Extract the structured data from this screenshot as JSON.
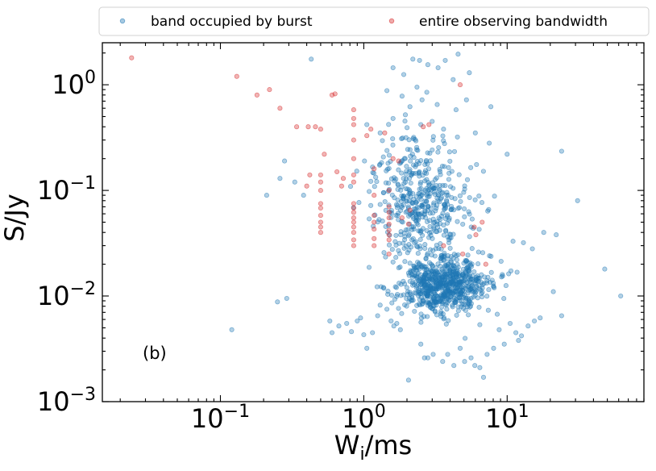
{
  "chart_data": {
    "type": "scatter",
    "xscale": "log",
    "yscale": "log",
    "xlim": [
      0.015,
      90
    ],
    "ylim": [
      0.001,
      2.5
    ],
    "xlabel": {
      "base": "W",
      "sub": "i",
      "unit": "/ms"
    },
    "ylabel": "S/Jy",
    "xticks": [
      {
        "value": 0.1,
        "base": "10",
        "exp": "−1"
      },
      {
        "value": 1,
        "base": "10",
        "exp": "0"
      },
      {
        "value": 10,
        "base": "10",
        "exp": "1"
      }
    ],
    "yticks": [
      {
        "value": 0.001,
        "base": "10",
        "exp": "−3"
      },
      {
        "value": 0.01,
        "base": "10",
        "exp": "−2"
      },
      {
        "value": 0.1,
        "base": "10",
        "exp": "−1"
      },
      {
        "value": 1,
        "base": "10",
        "exp": "0"
      }
    ],
    "legend": {
      "position": "top",
      "columns": 2
    },
    "annotation": "(b)",
    "series": [
      {
        "name": "band occupied by burst",
        "color": "#1f77b4",
        "alpha": 0.35,
        "points": [
          [
            0.12,
            0.0048
          ],
          [
            0.21,
            0.09
          ],
          [
            0.25,
            0.0088
          ],
          [
            0.26,
            0.13
          ],
          [
            0.28,
            0.19
          ],
          [
            0.29,
            0.0095
          ],
          [
            0.33,
            0.12
          ],
          [
            0.38,
            0.09
          ],
          [
            0.43,
            1.75
          ],
          [
            0.58,
            0.0058
          ],
          [
            0.6,
            0.0045
          ],
          [
            0.67,
            0.0052
          ],
          [
            0.76,
            0.0055
          ],
          [
            0.82,
            0.0046
          ],
          [
            0.9,
            0.0058
          ],
          [
            0.95,
            0.0062
          ],
          [
            1.0,
            0.0043
          ],
          [
            1.05,
            0.0032
          ],
          [
            1.15,
            0.0045
          ],
          [
            1.25,
            0.0065
          ],
          [
            1.3,
            0.0082
          ],
          [
            1.45,
            0.0075
          ],
          [
            1.55,
            0.0058
          ],
          [
            1.62,
            0.0052
          ],
          [
            1.7,
            0.0055
          ],
          [
            1.8,
            0.0048
          ],
          [
            2.05,
            0.0016
          ],
          [
            2.5,
            0.0035
          ],
          [
            2.65,
            0.0026
          ],
          [
            2.8,
            0.0026
          ],
          [
            3.05,
            0.0028
          ],
          [
            3.55,
            0.0024
          ],
          [
            3.85,
            0.0028
          ],
          [
            4.25,
            0.0022
          ],
          [
            4.7,
            0.0032
          ],
          [
            5.05,
            0.0024
          ],
          [
            5.6,
            0.0026
          ],
          [
            5.95,
            0.0022
          ],
          [
            6.45,
            0.0021
          ],
          [
            6.85,
            0.0017
          ],
          [
            7.25,
            0.0028
          ],
          [
            8.05,
            0.0032
          ],
          [
            8.8,
            0.0048
          ],
          [
            9.55,
            0.0035
          ],
          [
            10.5,
            0.0055
          ],
          [
            11.5,
            0.0045
          ],
          [
            12.0,
            0.0038
          ],
          [
            12.6,
            0.0042
          ],
          [
            14.0,
            0.0052
          ],
          [
            15.5,
            0.0058
          ],
          [
            17.0,
            0.0062
          ],
          [
            21.0,
            0.011
          ],
          [
            24.0,
            0.0065
          ],
          [
            11.0,
            0.033
          ],
          [
            13.0,
            0.032
          ],
          [
            15.0,
            0.028
          ],
          [
            18.0,
            0.04
          ],
          [
            22.0,
            0.038
          ],
          [
            24.0,
            0.235
          ],
          [
            31.0,
            0.08
          ],
          [
            48.0,
            0.018
          ],
          [
            62.0,
            0.01
          ],
          [
            1.6,
            1.45
          ],
          [
            1.9,
            1.25
          ],
          [
            2.2,
            1.75
          ],
          [
            2.45,
            1.7
          ],
          [
            2.8,
            1.55
          ],
          [
            3.3,
            1.45
          ],
          [
            3.7,
            1.7
          ],
          [
            4.55,
            1.95
          ],
          [
            5.45,
            1.3
          ],
          [
            4.2,
            1.12
          ],
          [
            1.45,
            0.88
          ],
          [
            1.85,
            0.78
          ],
          [
            2.1,
            0.62
          ],
          [
            2.35,
            0.95
          ],
          [
            2.55,
            0.72
          ],
          [
            2.75,
            0.85
          ],
          [
            3.25,
            0.65
          ],
          [
            4.4,
            0.58
          ],
          [
            5.2,
            0.72
          ],
          [
            7.7,
            0.62
          ],
          [
            1.05,
            0.42
          ],
          [
            1.3,
            0.35
          ],
          [
            1.6,
            0.48
          ],
          [
            1.95,
            0.52
          ],
          [
            2.5,
            0.42
          ],
          [
            3.0,
            0.45
          ],
          [
            3.6,
            0.38
          ],
          [
            4.5,
            0.32
          ],
          [
            6.0,
            0.35
          ],
          [
            7.5,
            0.28
          ],
          [
            10.0,
            0.22
          ]
        ]
      },
      {
        "name": "entire observing bandwidth",
        "color": "#d62728",
        "alpha": 0.35,
        "points": [
          [
            0.024,
            1.8
          ],
          [
            0.13,
            1.2
          ],
          [
            0.18,
            0.8
          ],
          [
            0.22,
            0.9
          ],
          [
            0.26,
            0.6
          ],
          [
            0.34,
            0.4
          ],
          [
            0.41,
            0.4
          ],
          [
            0.46,
            0.4
          ],
          [
            0.5,
            0.38
          ],
          [
            0.6,
            0.8
          ],
          [
            0.63,
            0.82
          ],
          [
            0.53,
            0.22
          ],
          [
            0.42,
            0.14
          ],
          [
            0.4,
            0.11
          ],
          [
            0.5,
            0.12
          ],
          [
            0.5,
            0.14
          ],
          [
            0.5,
            0.1
          ],
          [
            0.5,
            0.075
          ],
          [
            0.5,
            0.068
          ],
          [
            0.5,
            0.058
          ],
          [
            0.5,
            0.05
          ],
          [
            0.5,
            0.045
          ],
          [
            0.5,
            0.04
          ],
          [
            0.65,
            0.15
          ],
          [
            0.7,
            0.11
          ],
          [
            0.72,
            0.13
          ],
          [
            0.85,
            0.58
          ],
          [
            0.85,
            0.48
          ],
          [
            0.85,
            0.42
          ],
          [
            0.85,
            0.3
          ],
          [
            0.85,
            0.2
          ],
          [
            0.85,
            0.14
          ],
          [
            0.85,
            0.12
          ],
          [
            0.85,
            0.075
          ],
          [
            0.85,
            0.068
          ],
          [
            0.85,
            0.062
          ],
          [
            0.85,
            0.055
          ],
          [
            0.85,
            0.05
          ],
          [
            0.85,
            0.045
          ],
          [
            0.85,
            0.04
          ],
          [
            0.85,
            0.034
          ],
          [
            0.85,
            0.03
          ],
          [
            1.05,
            0.33
          ],
          [
            1.12,
            0.38
          ],
          [
            1.18,
            0.16
          ],
          [
            1.18,
            0.09
          ],
          [
            1.18,
            0.058
          ],
          [
            1.18,
            0.05
          ],
          [
            1.18,
            0.043
          ],
          [
            1.18,
            0.035
          ],
          [
            1.18,
            0.03
          ],
          [
            1.4,
            0.35
          ],
          [
            1.5,
            0.1
          ],
          [
            1.5,
            0.07
          ],
          [
            1.5,
            0.062
          ],
          [
            1.5,
            0.055
          ],
          [
            1.5,
            0.048
          ],
          [
            1.5,
            0.042
          ],
          [
            1.5,
            0.038
          ],
          [
            1.5,
            0.034
          ],
          [
            1.5,
            0.025
          ],
          [
            1.6,
            0.2
          ],
          [
            1.75,
            0.19
          ],
          [
            1.85,
            0.055
          ],
          [
            2.05,
            0.048
          ],
          [
            2.1,
            0.065
          ],
          [
            2.6,
            0.4
          ],
          [
            2.85,
            0.42
          ],
          [
            3.6,
            0.03
          ],
          [
            4.7,
            1.0
          ],
          [
            4.9,
            0.025
          ],
          [
            5.9,
            0.045
          ],
          [
            6.05,
            0.038
          ],
          [
            6.7,
            0.05
          ],
          [
            7.1,
            0.02
          ]
        ]
      }
    ],
    "cloud": {
      "note": "dense scatter of the 'band occupied by burst' series, clustered around W=3 ms, S=0.012 Jy and W=2.5 ms, S=0.07 Jy",
      "clusters": [
        {
          "center": [
            3.6,
            0.0125
          ],
          "spread_dex": [
            0.16,
            0.14
          ],
          "count": 720
        },
        {
          "center": [
            2.6,
            0.07
          ],
          "spread_dex": [
            0.17,
            0.24
          ],
          "count": 380
        },
        {
          "center": [
            2.0,
            0.18
          ],
          "spread_dex": [
            0.14,
            0.18
          ],
          "count": 70
        }
      ],
      "limits": {
        "x": [
          0.75,
          24
        ],
        "y": [
          0.0023,
          0.55
        ]
      },
      "seed": 20240531
    }
  }
}
